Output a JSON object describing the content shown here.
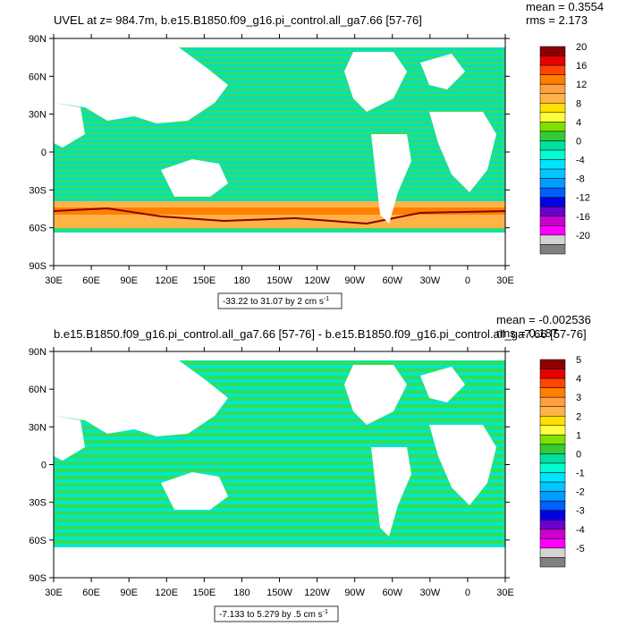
{
  "chart_data": [
    {
      "type": "heatmap",
      "title": "UVEL at z= 984.7m, b.e15.B1850.f09_g16.pi_control.all_ga7.66 [57-76]",
      "stats": {
        "mean": "mean = 0.3554",
        "rms": "rms = 2.173"
      },
      "range_label": "-33.22 to 31.07 by 2 cm s",
      "range_unit_exp": "-1",
      "lat_ticks": [
        "90N",
        "60N",
        "30N",
        "0",
        "30S",
        "60S",
        "90S"
      ],
      "lon_ticks": [
        "30E",
        "60E",
        "90E",
        "120E",
        "150E",
        "180",
        "150W",
        "120W",
        "90W",
        "60W",
        "30W",
        "0",
        "30E"
      ],
      "colorbar": {
        "labels": [
          "20",
          "16",
          "12",
          "8",
          "4",
          "0",
          "-4",
          "-8",
          "-12",
          "-16",
          "-20"
        ],
        "colors": [
          "#8b0000",
          "#e60000",
          "#ff4500",
          "#ff7f00",
          "#ffa040",
          "#ffb347",
          "#ffe000",
          "#ffff40",
          "#80e000",
          "#33cc33",
          "#00e0a0",
          "#00ffd0",
          "#00e5ff",
          "#00c8ff",
          "#009cff",
          "#0060ff",
          "#0000e0",
          "#6a00cc",
          "#cc00cc",
          "#ff00ff",
          "#d3d3d3",
          "#808080"
        ]
      },
      "data_min": -33.22,
      "data_max": 31.07,
      "interval": 2
    },
    {
      "type": "heatmap",
      "title": "b.e15.B1850.f09_g16.pi_control.all_ga7.66 [57-76] - b.e15.B1850.f09_g16.pi_control.all_ga7.66 [57-76]",
      "stats": {
        "mean": "mean = -0.002536",
        "rms": "rms = 0.187"
      },
      "range_label": "-7.133 to 5.279 by .5 cm s",
      "range_unit_exp": "-1",
      "lat_ticks": [
        "90N",
        "60N",
        "30N",
        "0",
        "30S",
        "60S",
        "90S"
      ],
      "lon_ticks": [
        "30E",
        "60E",
        "90E",
        "120E",
        "150E",
        "180",
        "150W",
        "120W",
        "90W",
        "60W",
        "30W",
        "0",
        "30E"
      ],
      "colorbar": {
        "labels": [
          "5",
          "4",
          "3",
          "2",
          "1",
          "0",
          "-1",
          "-2",
          "-3",
          "-4",
          "-5"
        ],
        "colors": [
          "#8b0000",
          "#e60000",
          "#ff4500",
          "#ff7f00",
          "#ffa040",
          "#ffb347",
          "#ffe000",
          "#ffff40",
          "#80e000",
          "#33cc33",
          "#00e0a0",
          "#00ffd0",
          "#00e5ff",
          "#00c8ff",
          "#009cff",
          "#0060ff",
          "#0000e0",
          "#6a00cc",
          "#cc00cc",
          "#ff00ff",
          "#d3d3d3",
          "#808080"
        ]
      },
      "data_min": -7.133,
      "data_max": 5.279,
      "interval": 0.5
    }
  ]
}
